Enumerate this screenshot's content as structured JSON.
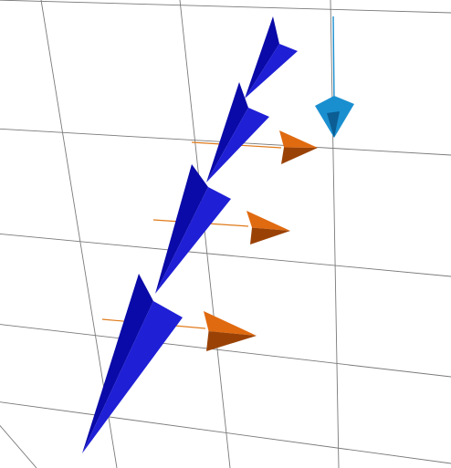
{
  "scene": {
    "view": "3d-vector-field",
    "background_color": "#ffffff",
    "grid": {
      "visible": true,
      "color": "#7a7a7a"
    },
    "colors": {
      "blue_cone": "#1f1fd6",
      "blue_cone_shade": "#0a0aa8",
      "orange_cone": "#e06a10",
      "orange_cone_shade": "#9a4206",
      "cyan_cone": "#1a8fd0",
      "cyan_cone_shade": "#0b5d93",
      "orange_shaft": "#e07a1a",
      "cyan_shaft": "#1a8fd0"
    },
    "counts": {
      "blue_cones": 4,
      "orange_arrows": 3,
      "cyan_arrows": 1
    }
  }
}
